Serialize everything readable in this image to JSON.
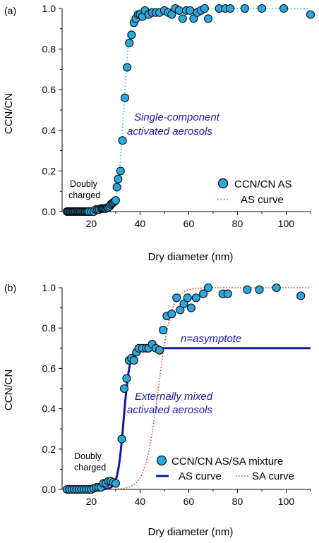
{
  "chart_data": [
    {
      "type": "scatter",
      "panel_label": "(a)",
      "xlabel": "Dry diameter (nm)",
      "ylabel": "CCN/CN",
      "xlim": [
        8,
        110
      ],
      "ylim": [
        0,
        1.0
      ],
      "xticks": [
        20,
        40,
        60,
        80,
        100
      ],
      "yticks": [
        0.0,
        0.2,
        0.4,
        0.6,
        0.8,
        1.0
      ],
      "annotations": {
        "doubly_charged": [
          "Doubly",
          "charged"
        ],
        "main": [
          "Single-component",
          "activated aerosols"
        ]
      },
      "colors": {
        "marker": "#29a9e0",
        "marker_edge": "#0a0a0a",
        "as_curve": "#33cfe6",
        "annotation": "#1a1aa8"
      },
      "legend": {
        "position": "bottom-right",
        "entries": [
          "CCN/CN AS",
          "AS curve"
        ]
      },
      "series": [
        {
          "name": "CCN/CN AS",
          "kind": "markers",
          "x": [
            10.0,
            10.5,
            11.0,
            11.5,
            12.0,
            12.5,
            13.0,
            13.5,
            14.0,
            14.5,
            15.0,
            15.5,
            16.0,
            16.5,
            17.0,
            17.5,
            18.0,
            18.5,
            19.0,
            20.0,
            21.0,
            21.8,
            22.5,
            23.2,
            24.0,
            24.5,
            25.0,
            25.5,
            26.0,
            26.5,
            27.0,
            27.5,
            28.0,
            28.5,
            29.0,
            29.5,
            30.0,
            30.5,
            31.0,
            32.0,
            32.8,
            33.8,
            34.7,
            35.6,
            36.5,
            37.5,
            38.3,
            39.2,
            40.0,
            41.0,
            42.0,
            43.5,
            45.0,
            46.5,
            48.0,
            50.0,
            51.5,
            53.0,
            54.5,
            56.0,
            57.5,
            59.0,
            60.5,
            62.0,
            63.5,
            65.0,
            66.5,
            68.0,
            72.5,
            75.0,
            77.0,
            83.0,
            90.0,
            99.0,
            110.0
          ],
          "y": [
            0.0,
            0.0,
            0.0,
            0.0,
            0.0,
            0.0,
            0.0,
            0.0,
            0.0,
            0.0,
            0.0,
            0.0,
            0.0,
            0.0,
            0.0,
            0.0,
            0.0,
            0.0,
            0.0,
            0.0,
            0.0,
            0.01,
            0.01,
            0.01,
            0.015,
            0.015,
            0.015,
            0.015,
            0.015,
            0.02,
            0.02,
            0.025,
            0.035,
            0.04,
            0.045,
            0.05,
            0.055,
            0.12,
            0.16,
            0.2,
            0.35,
            0.56,
            0.71,
            0.83,
            0.87,
            0.93,
            0.95,
            0.97,
            0.97,
            0.96,
            0.99,
            0.97,
            0.98,
            0.98,
            0.98,
            0.99,
            0.98,
            0.97,
            1.0,
            0.99,
            0.95,
            0.99,
            0.99,
            0.95,
            0.98,
            0.99,
            1.0,
            0.95,
            1.0,
            1.0,
            1.0,
            1.0,
            1.0,
            1.0,
            0.97
          ]
        },
        {
          "name": "AS curve",
          "kind": "sigmoid",
          "d50": 33.3,
          "width": 1.25,
          "max": 1.0,
          "x_range": [
            10,
            110
          ]
        }
      ]
    },
    {
      "type": "scatter",
      "panel_label": "(b)",
      "xlabel": "Dry diameter (nm)",
      "ylabel": "CCN/CN",
      "xlim": [
        8,
        110
      ],
      "ylim": [
        0,
        1.0
      ],
      "xticks": [
        20,
        40,
        60,
        80,
        100
      ],
      "yticks": [
        0.0,
        0.2,
        0.4,
        0.6,
        0.8,
        1.0
      ],
      "annotations": {
        "doubly_charged": [
          "Doubly",
          "charged"
        ],
        "main": [
          "Externally mixed",
          "activated aerosols"
        ],
        "asymptote": "n=asymptote"
      },
      "colors": {
        "marker": "#29a9e0",
        "marker_edge": "#0a0a0a",
        "as_curve": "#0c1a9e",
        "sa_curve": "#e0322c",
        "annotation": "#1a1aa8"
      },
      "legend": {
        "position": "bottom-right",
        "entries": [
          "CCN/CN AS/SA mixture",
          "AS curve",
          "SA curve"
        ]
      },
      "series": [
        {
          "name": "CCN/CN AS/SA mixture",
          "kind": "markers",
          "x": [
            10.0,
            11.0,
            12.0,
            13.0,
            14.0,
            15.0,
            16.0,
            17.0,
            18.0,
            19.0,
            20.0,
            21.0,
            22.0,
            23.0,
            24.0,
            25.0,
            26.0,
            27.0,
            28.0,
            29.0,
            30.0,
            32.5,
            33.5,
            34.5,
            35.5,
            36.5,
            37.5,
            38.5,
            39.5,
            41.0,
            42.5,
            43.5,
            45.0,
            46.5,
            48.0,
            49.5,
            51.0,
            53.0,
            55.0,
            56.5,
            58.0,
            59.5,
            61.0,
            63.0,
            66.0,
            68.0,
            74.0,
            76.0,
            84.0,
            89.0,
            96.0,
            106.0
          ],
          "y": [
            0.0,
            0.0,
            0.0,
            0.0,
            0.0,
            0.0,
            0.0,
            0.0,
            0.0,
            0.0,
            0.0,
            0.005,
            0.01,
            0.01,
            0.01,
            0.03,
            0.03,
            0.04,
            0.04,
            0.035,
            0.03,
            0.25,
            0.5,
            0.55,
            0.64,
            0.65,
            0.64,
            0.68,
            0.7,
            0.7,
            0.7,
            0.7,
            0.72,
            0.7,
            0.69,
            0.79,
            0.86,
            0.87,
            0.95,
            0.89,
            0.92,
            0.95,
            0.9,
            0.95,
            0.97,
            1.0,
            0.97,
            0.97,
            0.99,
            0.99,
            1.0,
            0.96
          ]
        },
        {
          "name": "AS curve",
          "kind": "sigmoid",
          "d50": 33.3,
          "width": 1.25,
          "max": 0.7,
          "x_range": [
            10,
            110
          ]
        },
        {
          "name": "SA curve",
          "kind": "sigmoid",
          "d50": 47.5,
          "width": 2.7,
          "max": 1.0,
          "x_range": [
            10,
            110
          ]
        }
      ]
    }
  ]
}
